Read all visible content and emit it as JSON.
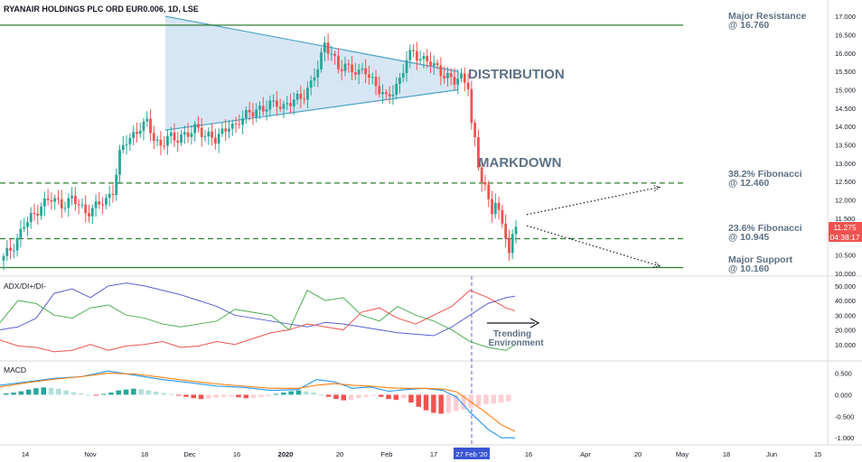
{
  "header": {
    "title": "RYANAIR HOLDINGS PLC ORD EUR0.006, 1D, LSE"
  },
  "annotations": {
    "distribution": "DISTRIBUTION",
    "markdown": "MARKDOWN",
    "major_resistance": [
      "Major Resistance",
      "@ 16.760"
    ],
    "fib_382": [
      "38.2% Fibonacci",
      "@ 12.460"
    ],
    "fib_236": [
      "23.6% Fibonacci",
      "@ 10.945"
    ],
    "major_support": [
      "Major Support",
      "@ 10.160"
    ],
    "trending": [
      "Trending",
      "Environment"
    ]
  },
  "price_badges": {
    "last_price": "11.275",
    "countdown": "04:38:17",
    "color": "#ef5350"
  },
  "colors": {
    "up": "#26a69a",
    "down": "#ef5350",
    "level_line": "#2e7d32",
    "triangle_fill": "#c9ddf0",
    "triangle_stroke": "#4aa3c8",
    "adx": "#5b5fd6",
    "di_plus": "#4caf50",
    "di_minus": "#ef5350",
    "macd": "#2196f3",
    "signal": "#ff7f0e",
    "vline": "#5b5fd6"
  },
  "chart_data": [
    {
      "type": "candlestick",
      "title": "RYANAIR HOLDINGS PLC ORD EUR0.006, 1D, LSE",
      "ylim": [
        10.0,
        17.1
      ],
      "y_ticks": [
        "17.000",
        "16.500",
        "16.000",
        "15.500",
        "15.000",
        "14.500",
        "14.000",
        "13.500",
        "13.000",
        "12.500",
        "12.000",
        "11.500",
        "11.000",
        "10.500",
        "10.000"
      ],
      "x_ticks": [
        "14",
        "Nov",
        "18",
        "Dec",
        "16",
        "2020",
        "20",
        "Feb",
        "17",
        "27 Feb '20",
        "16",
        "Apr",
        "20",
        "May",
        "18",
        "Jun",
        "15"
      ],
      "levels": [
        {
          "name": "Major Resistance",
          "value": 16.76,
          "style": "solid"
        },
        {
          "name": "38.2% Fibonacci",
          "value": 12.46,
          "style": "dashed"
        },
        {
          "name": "23.6% Fibonacci",
          "value": 10.945,
          "style": "dashed"
        },
        {
          "name": "Major Support",
          "value": 10.16,
          "style": "solid"
        }
      ],
      "close_path": [
        [
          0,
          10.4
        ],
        [
          3,
          10.8
        ],
        [
          6,
          11.3
        ],
        [
          9,
          11.6
        ],
        [
          11,
          11.9
        ],
        [
          14,
          12.0
        ],
        [
          17,
          11.9
        ],
        [
          20,
          12.0
        ],
        [
          24,
          11.7
        ],
        [
          27,
          11.8
        ],
        [
          30,
          12.0
        ],
        [
          32,
          12.3
        ],
        [
          34,
          13.2
        ],
        [
          36,
          13.6
        ],
        [
          38,
          13.8
        ],
        [
          40,
          14.0
        ],
        [
          42,
          14.05
        ],
        [
          44,
          13.7
        ],
        [
          46,
          13.5
        ],
        [
          48,
          13.7
        ],
        [
          50,
          13.6
        ],
        [
          52,
          13.8
        ],
        [
          54,
          13.8
        ],
        [
          56,
          13.9
        ],
        [
          58,
          13.85
        ],
        [
          60,
          13.8
        ],
        [
          62,
          13.6
        ],
        [
          64,
          13.8
        ],
        [
          66,
          14.1
        ],
        [
          68,
          14.0
        ],
        [
          70,
          14.2
        ],
        [
          72,
          14.4
        ],
        [
          74,
          14.5
        ],
        [
          76,
          14.4
        ],
        [
          78,
          14.6
        ],
        [
          80,
          14.7
        ],
        [
          82,
          14.5
        ],
        [
          84,
          14.6
        ],
        [
          86,
          14.8
        ],
        [
          88,
          14.9
        ],
        [
          90,
          15.1
        ],
        [
          92,
          15.6
        ],
        [
          94,
          16.3
        ],
        [
          96,
          16.0
        ],
        [
          98,
          15.5
        ],
        [
          100,
          15.7
        ],
        [
          102,
          15.6
        ],
        [
          104,
          15.4
        ],
        [
          106,
          15.5
        ],
        [
          108,
          15.3
        ],
        [
          110,
          15.0
        ],
        [
          112,
          14.7
        ],
        [
          114,
          15.0
        ],
        [
          116,
          15.3
        ],
        [
          118,
          15.8
        ],
        [
          120,
          16.0
        ],
        [
          122,
          15.9
        ],
        [
          124,
          15.8
        ],
        [
          126,
          15.6
        ],
        [
          128,
          15.5
        ],
        [
          130,
          15.4
        ],
        [
          132,
          15.2
        ],
        [
          134,
          15.3
        ],
        [
          136,
          15.2
        ],
        [
          137,
          14.1
        ],
        [
          138,
          13.6
        ],
        [
          139,
          12.9
        ],
        [
          140,
          12.5
        ],
        [
          141,
          12.3
        ],
        [
          142,
          12.0
        ],
        [
          143,
          11.8
        ],
        [
          144,
          12.0
        ],
        [
          145,
          11.6
        ],
        [
          146,
          11.3
        ],
        [
          147,
          11.0
        ],
        [
          148,
          10.5
        ],
        [
          149,
          11.0
        ],
        [
          150,
          11.4
        ]
      ],
      "triangle": {
        "upper": [
          [
            183,
            17.0
          ],
          [
            507,
            15.5
          ]
        ],
        "lower": [
          [
            183,
            13.9
          ],
          [
            507,
            15.0
          ]
        ]
      },
      "projections": [
        [
          [
            583,
            11.6
          ],
          [
            730,
            12.35
          ]
        ],
        [
          [
            583,
            11.3
          ],
          [
            730,
            10.2
          ]
        ]
      ]
    },
    {
      "type": "line",
      "title": "ADX/DI+/DI-",
      "ylim": [
        0,
        53
      ],
      "y_ticks": [
        "50.000",
        "40.000",
        "30.000",
        "20.000",
        "10.000"
      ],
      "series": [
        {
          "name": "ADX",
          "values": [
            [
              0,
              20
            ],
            [
              20,
              22
            ],
            [
              40,
              28
            ],
            [
              60,
              45
            ],
            [
              80,
              48
            ],
            [
              100,
              42
            ],
            [
              120,
              50
            ],
            [
              140,
              52
            ],
            [
              160,
              50
            ],
            [
              180,
              47
            ],
            [
              200,
              44
            ],
            [
              220,
              40
            ],
            [
              240,
              36
            ],
            [
              260,
              30
            ],
            [
              280,
              28
            ],
            [
              300,
              26
            ],
            [
              320,
              24
            ],
            [
              340,
              22
            ],
            [
              360,
              25
            ],
            [
              380,
              24
            ],
            [
              400,
              22
            ],
            [
              420,
              20
            ],
            [
              440,
              18
            ],
            [
              460,
              17
            ],
            [
              480,
              16
            ],
            [
              500,
              22
            ],
            [
              520,
              30
            ],
            [
              540,
              38
            ],
            [
              560,
              42
            ],
            [
              570,
              43
            ]
          ]
        },
        {
          "name": "DI+",
          "values": [
            [
              0,
              25
            ],
            [
              20,
              40
            ],
            [
              40,
              38
            ],
            [
              60,
              30
            ],
            [
              80,
              28
            ],
            [
              100,
              35
            ],
            [
              120,
              37
            ],
            [
              140,
              30
            ],
            [
              160,
              28
            ],
            [
              180,
              24
            ],
            [
              200,
              22
            ],
            [
              220,
              24
            ],
            [
              240,
              26
            ],
            [
              260,
              34
            ],
            [
              280,
              32
            ],
            [
              300,
              30
            ],
            [
              320,
              20
            ],
            [
              340,
              47
            ],
            [
              360,
              40
            ],
            [
              380,
              42
            ],
            [
              400,
              30
            ],
            [
              420,
              26
            ],
            [
              440,
              36
            ],
            [
              460,
              30
            ],
            [
              480,
              26
            ],
            [
              500,
              20
            ],
            [
              520,
              12
            ],
            [
              540,
              8
            ],
            [
              560,
              6
            ],
            [
              570,
              10
            ]
          ]
        },
        {
          "name": "DI-",
          "values": [
            [
              0,
              13
            ],
            [
              20,
              9
            ],
            [
              40,
              8
            ],
            [
              60,
              5
            ],
            [
              80,
              6
            ],
            [
              100,
              10
            ],
            [
              120,
              6
            ],
            [
              140,
              9
            ],
            [
              160,
              10
            ],
            [
              180,
              12
            ],
            [
              200,
              8
            ],
            [
              220,
              9
            ],
            [
              240,
              12
            ],
            [
              260,
              10
            ],
            [
              280,
              14
            ],
            [
              300,
              18
            ],
            [
              320,
              20
            ],
            [
              340,
              24
            ],
            [
              360,
              22
            ],
            [
              380,
              20
            ],
            [
              400,
              32
            ],
            [
              420,
              35
            ],
            [
              440,
              28
            ],
            [
              460,
              24
            ],
            [
              480,
              30
            ],
            [
              500,
              36
            ],
            [
              520,
              47
            ],
            [
              540,
              42
            ],
            [
              560,
              35
            ],
            [
              570,
              33
            ]
          ]
        }
      ]
    },
    {
      "type": "macd",
      "title": "MACD",
      "ylim": [
        -1.1,
        0.7
      ],
      "y_ticks": [
        "0.500",
        "0.000",
        "-0.500",
        "-1.000"
      ],
      "histogram": [
        0.03,
        0.05,
        0.08,
        0.12,
        0.15,
        0.17,
        0.16,
        0.14,
        0.1,
        0.06,
        0.03,
        0.0,
        -0.01,
        0.02,
        0.05,
        0.1,
        0.12,
        0.14,
        0.13,
        0.1,
        0.07,
        0.04,
        0.02,
        -0.02,
        -0.05,
        -0.08,
        -0.1,
        -0.09,
        -0.07,
        -0.05,
        -0.04,
        -0.06,
        -0.08,
        -0.07,
        -0.05,
        -0.03,
        0.02,
        0.05,
        0.08,
        0.1,
        0.08,
        0.05,
        0.0,
        -0.05,
        -0.1,
        -0.13,
        -0.12,
        -0.08,
        -0.05,
        -0.02,
        -0.05,
        -0.1,
        -0.12,
        -0.08,
        -0.18,
        -0.28,
        -0.36,
        -0.42,
        -0.44,
        -0.42,
        -0.38,
        -0.34,
        -0.3,
        -0.26,
        -0.22,
        -0.2,
        -0.18,
        -0.15
      ],
      "series": [
        {
          "name": "MACD",
          "values": [
            [
              0,
              0.22
            ],
            [
              30,
              0.3
            ],
            [
              60,
              0.38
            ],
            [
              90,
              0.42
            ],
            [
              120,
              0.55
            ],
            [
              150,
              0.45
            ],
            [
              180,
              0.35
            ],
            [
              210,
              0.28
            ],
            [
              240,
              0.2
            ],
            [
              270,
              0.17
            ],
            [
              300,
              0.1
            ],
            [
              330,
              0.12
            ],
            [
              350,
              0.35
            ],
            [
              370,
              0.3
            ],
            [
              390,
              0.15
            ],
            [
              410,
              0.18
            ],
            [
              430,
              0.08
            ],
            [
              450,
              0.12
            ],
            [
              470,
              0.15
            ],
            [
              490,
              0.1
            ],
            [
              505,
              -0.05
            ],
            [
              520,
              -0.4
            ],
            [
              540,
              -0.8
            ],
            [
              555,
              -1.0
            ],
            [
              570,
              -1.0
            ]
          ]
        },
        {
          "name": "Signal",
          "values": [
            [
              0,
              0.18
            ],
            [
              30,
              0.28
            ],
            [
              60,
              0.36
            ],
            [
              90,
              0.42
            ],
            [
              120,
              0.5
            ],
            [
              150,
              0.48
            ],
            [
              180,
              0.4
            ],
            [
              210,
              0.32
            ],
            [
              240,
              0.25
            ],
            [
              270,
              0.2
            ],
            [
              300,
              0.15
            ],
            [
              330,
              0.15
            ],
            [
              350,
              0.22
            ],
            [
              370,
              0.26
            ],
            [
              390,
              0.22
            ],
            [
              410,
              0.2
            ],
            [
              430,
              0.16
            ],
            [
              450,
              0.15
            ],
            [
              470,
              0.15
            ],
            [
              490,
              0.13
            ],
            [
              505,
              0.07
            ],
            [
              520,
              -0.15
            ],
            [
              540,
              -0.45
            ],
            [
              555,
              -0.7
            ],
            [
              570,
              -0.85
            ]
          ]
        }
      ]
    }
  ]
}
